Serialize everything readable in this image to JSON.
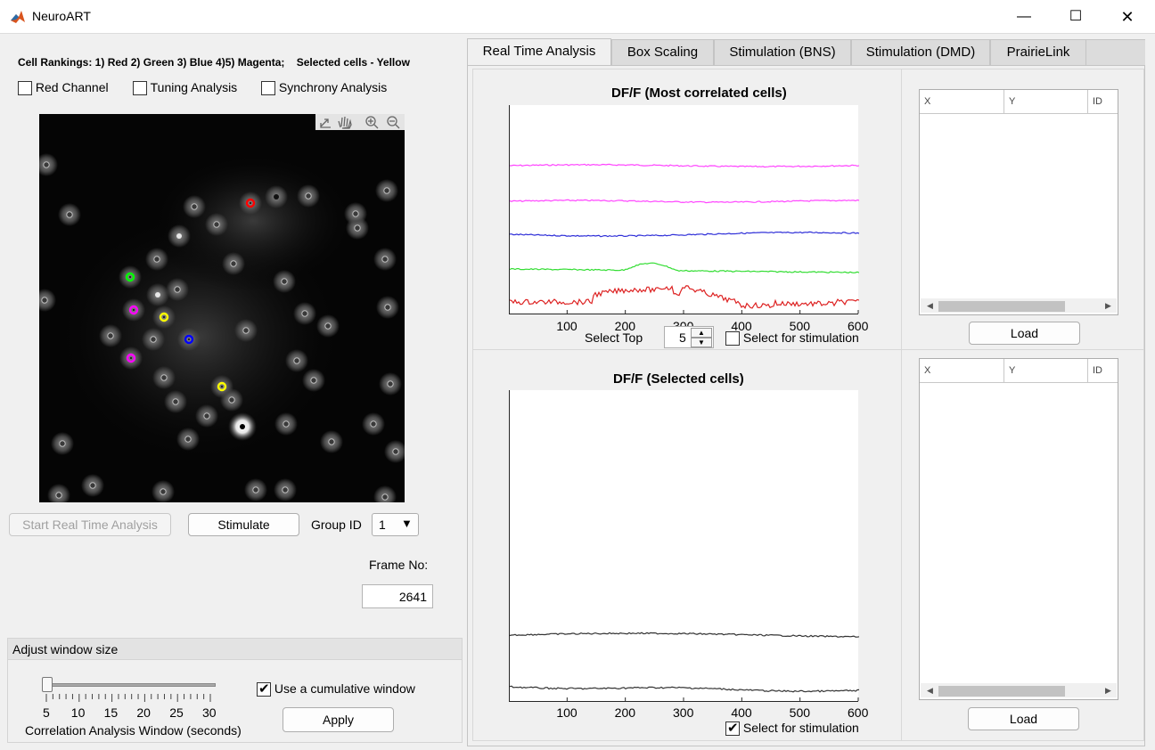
{
  "window": {
    "title": "NeuroART"
  },
  "left": {
    "rankings_text": "Cell Rankings: 1) Red 2) Green 3) Blue 4)5) Magenta;    Selected cells - Yellow",
    "checkboxes": [
      {
        "label": "Red Channel",
        "checked": false
      },
      {
        "label": "Tuning Analysis",
        "checked": false
      },
      {
        "label": "Synchrony Analysis",
        "checked": false
      }
    ],
    "start_button": "Start Real Time Analysis",
    "stimulate_button": "Stimulate",
    "group_id_label": "Group ID",
    "group_id_value": "1",
    "frame_no_label": "Frame No:",
    "frame_no_value": "2641",
    "window_panel": {
      "title": "Adjust window size",
      "slider_ticks": [
        "5",
        "10",
        "15",
        "20",
        "25",
        "30"
      ],
      "slider_value": 5,
      "slider_label": "Correlation Analysis Window (seconds)",
      "cumulative_label": "Use a cumulative window",
      "cumulative_checked": true,
      "apply_button": "Apply"
    }
  },
  "tabs": [
    {
      "label": "Real Time Analysis",
      "active": true
    },
    {
      "label": "Box Scaling",
      "active": false
    },
    {
      "label": "Stimulation (BNS)",
      "active": false
    },
    {
      "label": "Stimulation (DMD)",
      "active": false
    },
    {
      "label": "PrairieLink",
      "active": false
    }
  ],
  "top_plot": {
    "title": "DF/F (Most correlated  cells)",
    "xticks": [
      "100",
      "200",
      "300",
      "400",
      "500",
      "600"
    ],
    "select_top_label": "Select Top",
    "select_top_value": "5",
    "select_stim_label": "Select for stimulation",
    "select_stim_checked": false
  },
  "bottom_plot": {
    "title": "DF/F (Selected cells)",
    "xticks": [
      "100",
      "200",
      "300",
      "400",
      "500",
      "600"
    ],
    "select_stim_label": "Select for stimulation",
    "select_stim_checked": true
  },
  "tables": [
    {
      "columns": [
        "X",
        "Y",
        "ID"
      ],
      "load_button": "Load"
    },
    {
      "columns": [
        "X",
        "Y",
        "ID"
      ],
      "load_button": "Load"
    }
  ],
  "cell_colors": {
    "red": "#ff0000",
    "green": "#00ff00",
    "blue": "#0000ff",
    "magenta": "#ff00ff",
    "yellow": "#ffff00"
  }
}
